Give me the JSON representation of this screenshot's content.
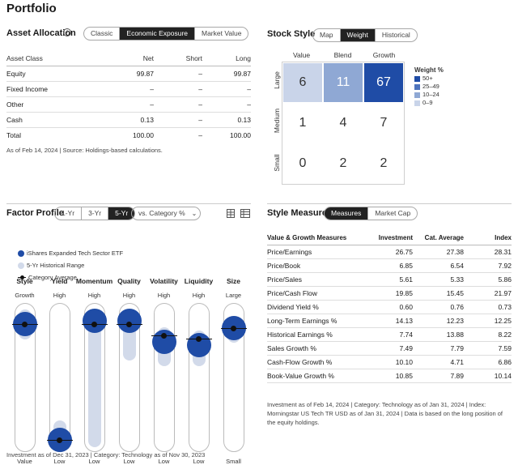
{
  "page_title": "Portfolio",
  "asset_allocation": {
    "title": "Asset Allocation",
    "tabs": [
      "Classic",
      "Economic Exposure",
      "Market Value"
    ],
    "active_tab": "Economic Exposure",
    "columns": [
      "Asset Class",
      "Net",
      "Short",
      "Long"
    ],
    "rows": [
      [
        "Equity",
        "99.87",
        "–",
        "99.87"
      ],
      [
        "Fixed Income",
        "–",
        "–",
        "–"
      ],
      [
        "Other",
        "–",
        "–",
        "–"
      ],
      [
        "Cash",
        "0.13",
        "–",
        "0.13"
      ]
    ],
    "total": [
      "Total",
      "100.00",
      "–",
      "100.00"
    ],
    "note": "As of Feb 14, 2024 | Source: Holdings-based calculations."
  },
  "stock_style": {
    "title": "Stock Style",
    "tabs": [
      "Map",
      "Weight",
      "Historical"
    ],
    "active_tab": "Weight",
    "columns": [
      "Value",
      "Blend",
      "Growth"
    ],
    "rows": [
      "Large",
      "Medium",
      "Small"
    ],
    "cells": [
      [
        "6",
        "11",
        "67"
      ],
      [
        "1",
        "4",
        "7"
      ],
      [
        "0",
        "2",
        "2"
      ]
    ],
    "cell_colors": [
      [
        "#c9d4e9",
        "#8fa8d4",
        "#1f4ca6"
      ],
      [
        "#ffffff",
        "#ffffff",
        "#ffffff"
      ],
      [
        "#ffffff",
        "#ffffff",
        "#ffffff"
      ]
    ],
    "legend_title": "Weight %",
    "legend": [
      {
        "label": "50+",
        "color": "#1f4ca6"
      },
      {
        "label": "25–49",
        "color": "#4f74bd"
      },
      {
        "label": "10–24",
        "color": "#8fa8d4"
      },
      {
        "label": "0–9",
        "color": "#c9d4e9"
      }
    ]
  },
  "factor_profile": {
    "title": "Factor Profile",
    "tabs": [
      "1-Yr",
      "3-Yr",
      "5-Yr"
    ],
    "active_tab": "5-Yr",
    "compare_select": "vs. Category %",
    "legend": [
      "iShares Expanded Tech Sector ETF",
      "5-Yr Historical Range",
      "Category Average"
    ],
    "factors": [
      {
        "name": "Style",
        "top": "Growth",
        "bottom": "Value",
        "fund": 0.86,
        "category": 0.86,
        "range": [
          0.76,
          0.96
        ]
      },
      {
        "name": "Yield",
        "top": "High",
        "bottom": "Low",
        "fund": 0.08,
        "category": 0.08,
        "range": [
          0.04,
          0.22
        ]
      },
      {
        "name": "Momentum",
        "top": "High",
        "bottom": "Low",
        "fund": 0.88,
        "category": 0.86,
        "range": [
          0.04,
          0.96
        ]
      },
      {
        "name": "Quality",
        "top": "High",
        "bottom": "Low",
        "fund": 0.88,
        "category": 0.86,
        "range": [
          0.62,
          0.96
        ]
      },
      {
        "name": "Volatility",
        "top": "High",
        "bottom": "Low",
        "fund": 0.74,
        "category": 0.78,
        "range": [
          0.58,
          0.84
        ]
      },
      {
        "name": "Liquidity",
        "top": "High",
        "bottom": "Low",
        "fund": 0.72,
        "category": 0.76,
        "range": [
          0.58,
          0.82
        ]
      },
      {
        "name": "Size",
        "top": "Large",
        "bottom": "Small",
        "fund": 0.83,
        "category": 0.83,
        "range": [
          0.74,
          0.92
        ]
      }
    ],
    "note": "Investment as of Dec 31, 2023 | Category: Technology as of Nov 30, 2023"
  },
  "style_measures": {
    "title": "Style Measures",
    "tabs": [
      "Measures",
      "Market Cap"
    ],
    "active_tab": "Measures",
    "columns": [
      "Value & Growth Measures",
      "Investment",
      "Cat. Average",
      "Index"
    ],
    "rows": [
      [
        "Price/Earnings",
        "26.75",
        "27.38",
        "28.31"
      ],
      [
        "Price/Book",
        "6.85",
        "6.54",
        "7.92"
      ],
      [
        "Price/Sales",
        "5.61",
        "5.33",
        "5.86"
      ],
      [
        "Price/Cash Flow",
        "19.85",
        "15.45",
        "21.97"
      ],
      [
        "Dividend Yield %",
        "0.60",
        "0.76",
        "0.73"
      ],
      [
        "Long-Term Earnings %",
        "14.13",
        "12.23",
        "12.25"
      ],
      [
        "Historical Earnings %",
        "7.74",
        "13.88",
        "8.22"
      ],
      [
        "Sales Growth %",
        "7.49",
        "7.79",
        "7.59"
      ],
      [
        "Cash-Flow Growth %",
        "10.10",
        "4.71",
        "6.86"
      ],
      [
        "Book-Value Growth %",
        "10.85",
        "7.89",
        "10.14"
      ]
    ],
    "note": "Investment as of Feb 14, 2024 | Category: Technology as of Jan 31, 2024 | Index: Morningstar US Tech TR USD as of Jan 31, 2024 | Data is based on the long position of the equity holdings."
  }
}
